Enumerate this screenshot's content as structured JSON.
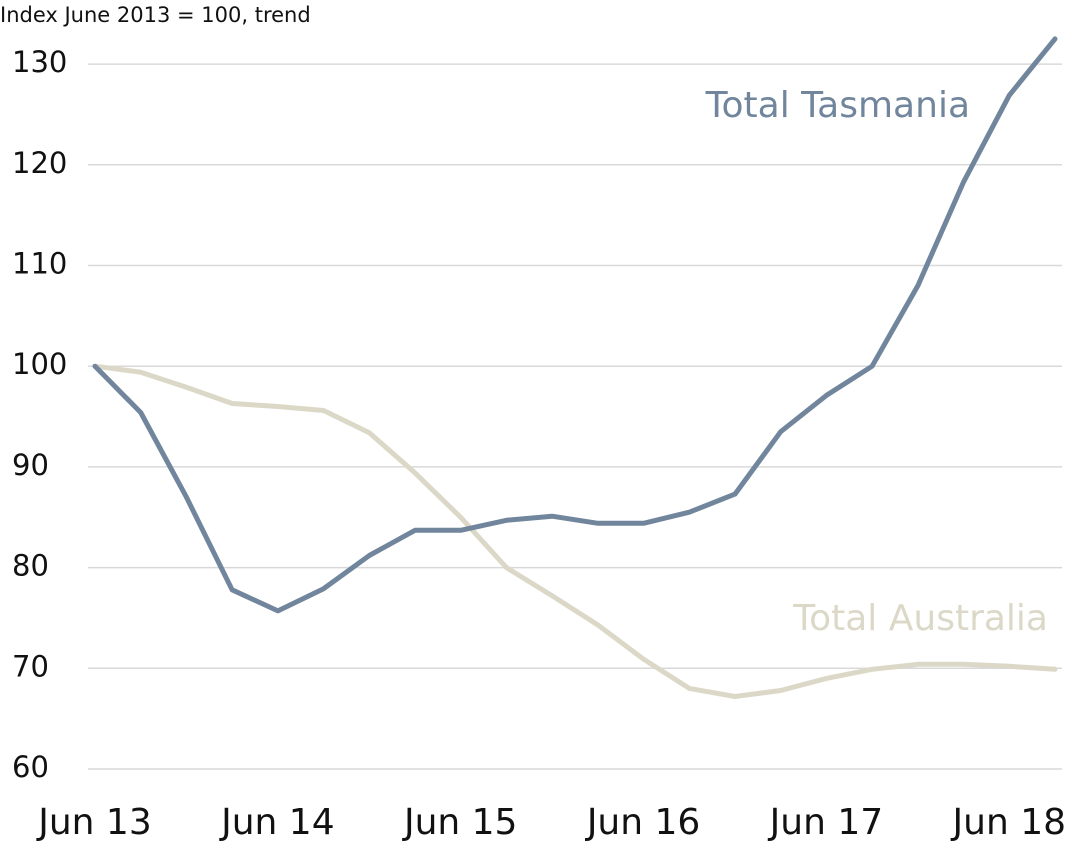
{
  "chart_data": {
    "type": "line",
    "y_axis_label": "Index June 2013 = 100, trend",
    "categories": [
      "Jun 13",
      null,
      null,
      null,
      "Jun 14",
      null,
      null,
      null,
      "Jun 15",
      null,
      null,
      null,
      "Jun 16",
      null,
      null,
      null,
      "Jun 17",
      null,
      null,
      null,
      "Jun 18",
      null
    ],
    "series": [
      {
        "name": "Total Tasmania",
        "color": "#71869c",
        "values": [
          100,
          95.4,
          87,
          77.8,
          75.7,
          77.9,
          81.2,
          83.7,
          83.7,
          84.7,
          85.1,
          84.4,
          84.4,
          85.5,
          87.3,
          93.5,
          97.1,
          100,
          108,
          118.3,
          126.9,
          132.5
        ]
      },
      {
        "name": "Total Australia",
        "color": "#dcd8c8",
        "values": [
          100,
          99.4,
          97.9,
          96.3,
          96,
          95.6,
          93.4,
          89.4,
          85,
          80,
          77.2,
          74.3,
          70.9,
          68,
          67.2,
          67.8,
          69,
          69.9,
          70.4,
          70.4,
          70.2,
          69.9
        ]
      }
    ],
    "ylim": [
      60,
      133
    ],
    "yticks": [
      60,
      70,
      80,
      90,
      100,
      110,
      120,
      130
    ],
    "grid": true
  }
}
